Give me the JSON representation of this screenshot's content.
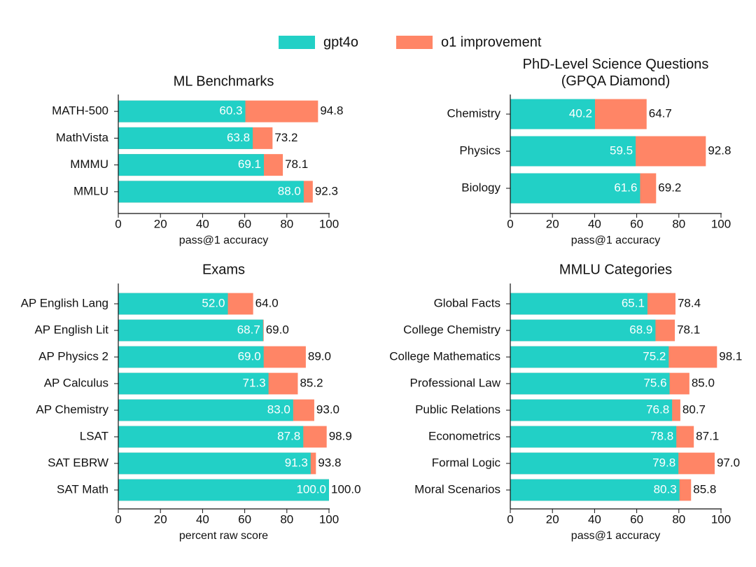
{
  "chart_data": [
    {
      "type": "bar",
      "title": "ML Benchmarks",
      "categories": [
        "MATH-500",
        "MathVista",
        "MMMU",
        "MMLU"
      ],
      "series": [
        {
          "name": "gpt4o",
          "color": "#22d0c6",
          "values": [
            60.3,
            63.8,
            69.1,
            88
          ],
          "value_labels": [
            "60.3",
            "63.8",
            "69.1",
            "88.0"
          ]
        },
        {
          "name": "o1 improvement",
          "color": "#ff8566",
          "values": [
            94.8,
            73.2,
            78.1,
            92.3
          ],
          "value_labels": [
            "94.8",
            "73.2",
            "78.1",
            "92.3"
          ]
        }
      ],
      "xlim": [
        0,
        100
      ],
      "xticks": [
        0,
        20,
        40,
        60,
        80,
        100
      ],
      "xlabel": "pass@1 accuracy"
    },
    {
      "type": "bar",
      "title": "PhD-Level Science Questions\n(GPQA Diamond)",
      "categories": [
        "Chemistry",
        "Physics",
        "Biology"
      ],
      "series": [
        {
          "name": "gpt4o",
          "color": "#22d0c6",
          "values": [
            40.2,
            59.5,
            61.6
          ],
          "value_labels": [
            "40.2",
            "59.5",
            "61.6"
          ]
        },
        {
          "name": "o1 improvement",
          "color": "#ff8566",
          "values": [
            64.7,
            92.8,
            69.2
          ],
          "value_labels": [
            "64.7",
            "92.8",
            "69.2"
          ]
        }
      ],
      "xlim": [
        0,
        100
      ],
      "xticks": [
        0,
        20,
        40,
        60,
        80,
        100
      ],
      "xlabel": "pass@1 accuracy"
    },
    {
      "type": "bar",
      "title": "Exams",
      "categories": [
        "AP English Lang",
        "AP English Lit",
        "AP Physics 2",
        "AP Calculus",
        "AP Chemistry",
        "LSAT",
        "SAT EBRW",
        "SAT Math"
      ],
      "series": [
        {
          "name": "gpt4o",
          "color": "#22d0c6",
          "values": [
            52,
            68.7,
            69,
            71.3,
            83,
            87.8,
            91.3,
            100
          ],
          "value_labels": [
            "52.0",
            "68.7",
            "69.0",
            "71.3",
            "83.0",
            "87.8",
            "91.3",
            "100.0"
          ]
        },
        {
          "name": "o1 improvement",
          "color": "#ff8566",
          "values": [
            64,
            69,
            89,
            85.2,
            93,
            98.9,
            93.8,
            100
          ],
          "value_labels": [
            "64.0",
            "69.0",
            "89.0",
            "85.2",
            "93.0",
            "98.9",
            "93.8",
            "100.0"
          ]
        }
      ],
      "xlim": [
        0,
        100
      ],
      "xticks": [
        0,
        20,
        40,
        60,
        80,
        100
      ],
      "xlabel": "percent raw score"
    },
    {
      "type": "bar",
      "title": "MMLU Categories",
      "categories": [
        "Global Facts",
        "College Chemistry",
        "College Mathematics",
        "Professional Law",
        "Public Relations",
        "Econometrics",
        "Formal Logic",
        "Moral Scenarios"
      ],
      "series": [
        {
          "name": "gpt4o",
          "color": "#22d0c6",
          "values": [
            65.1,
            68.9,
            75.2,
            75.6,
            76.8,
            78.8,
            79.8,
            80.3
          ],
          "value_labels": [
            "65.1",
            "68.9",
            "75.2",
            "75.6",
            "76.8",
            "78.8",
            "79.8",
            "80.3"
          ]
        },
        {
          "name": "o1 improvement",
          "color": "#ff8566",
          "values": [
            78.4,
            78.1,
            98.1,
            85,
            80.7,
            87.1,
            97,
            85.8
          ],
          "value_labels": [
            "78.4",
            "78.1",
            "98.1",
            "85.0",
            "80.7",
            "87.1",
            "97.0",
            "85.8"
          ]
        }
      ],
      "xlim": [
        0,
        100
      ],
      "xticks": [
        0,
        20,
        40,
        60,
        80,
        100
      ],
      "xlabel": "pass@1 accuracy"
    }
  ]
}
